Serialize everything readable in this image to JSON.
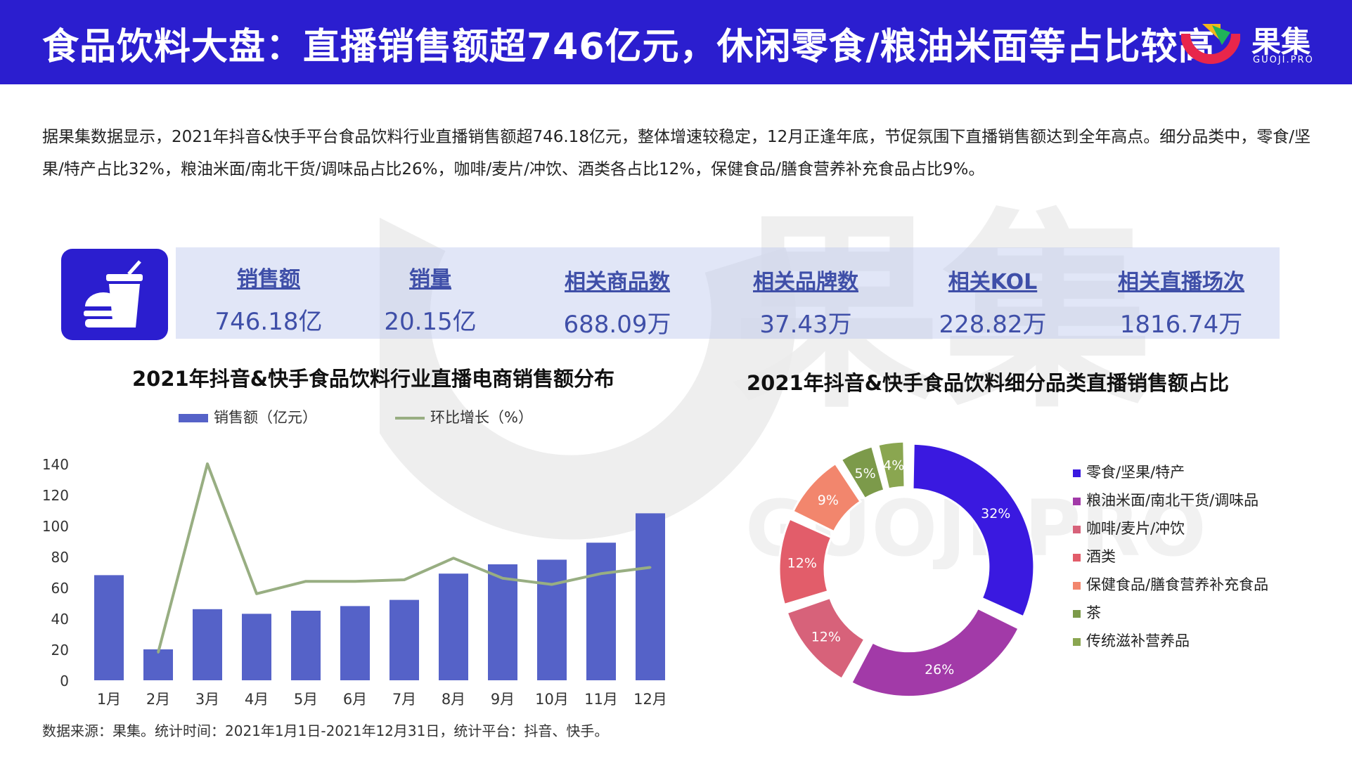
{
  "header": {
    "title": "食品饮料大盘：直播销售额超746亿元，休闲零食/粮油米面等占比较高",
    "logo_name": "果集",
    "logo_sub": "GUOJI.PRO",
    "bg_color": "#2b1ecf"
  },
  "summary": "据果集数据显示，2021年抖音&快手平台食品饮料行业直播销售额超746.18亿元，整体增速较稳定，12月正逢年底，节促氛围下直播销售额达到全年高点。细分品类中，零食/坚果/特产占比32%，粮油米面/南北干货/调味品占比26%，咖啡/麦片/冲饮、酒类各占比12%，保健食品/膳食营养补充食品占比9%。",
  "kpi_icon": "burger-drink-icon",
  "kpis": [
    {
      "label": "销售额",
      "value": "746.18亿"
    },
    {
      "label": "销量",
      "value": "20.15亿"
    },
    {
      "label": "相关商品数",
      "value": "688.09万"
    },
    {
      "label": "相关品牌数",
      "value": "37.43万"
    },
    {
      "label": "相关KOL",
      "value": "228.82万"
    },
    {
      "label": "相关直播场次",
      "value": "1816.74万"
    }
  ],
  "watermark": {
    "text": "果集",
    "sub": "GUOJI.PRO"
  },
  "chart_data": [
    {
      "type": "bar",
      "title": "2021年抖音&快手食品饮料行业直播电商销售额分布",
      "categories": [
        "1月",
        "2月",
        "3月",
        "4月",
        "5月",
        "6月",
        "7月",
        "8月",
        "9月",
        "10月",
        "11月",
        "12月"
      ],
      "series": [
        {
          "name": "销售额（亿元）",
          "type": "bar",
          "color": "#5562c8",
          "values": [
            68,
            20,
            46,
            43,
            45,
            48,
            52,
            69,
            75,
            78,
            89,
            108
          ]
        },
        {
          "name": "环比增长（%）",
          "type": "line",
          "color": "#98ae82",
          "values": [
            null,
            18,
            140,
            56,
            64,
            64,
            65,
            79,
            66,
            62,
            69,
            73
          ]
        }
      ],
      "ylim": [
        0,
        140
      ],
      "yticks": [
        "0",
        "20",
        "40",
        "60",
        "80",
        "100",
        "120",
        "140"
      ],
      "legend_position": "top",
      "grid": false
    },
    {
      "type": "pie",
      "title": "2021年抖音&快手食品饮料细分品类直播销售额占比",
      "donut": true,
      "legend_position": "right",
      "slices": [
        {
          "name": "零食/坚果/特产",
          "value": 32,
          "label": "32%",
          "color": "#3a19e0"
        },
        {
          "name": "粮油米面/南北干货/调味品",
          "value": 26,
          "label": "26%",
          "color": "#a23aa8"
        },
        {
          "name": "咖啡/麦片/冲饮",
          "value": 12,
          "label": "12%",
          "color": "#d7627a"
        },
        {
          "name": "酒类",
          "value": 12,
          "label": "12%",
          "color": "#e25d6a"
        },
        {
          "name": "保健食品/膳食营养补充食品",
          "value": 9,
          "label": "9%",
          "color": "#f2866d"
        },
        {
          "name": "茶",
          "value": 5,
          "label": "5%",
          "color": "#7c9a4a"
        },
        {
          "name": "传统滋补营养品",
          "value": 4,
          "label": "4%",
          "color": "#8aa650"
        }
      ]
    }
  ],
  "source": "数据来源：果集。统计时间：2021年1月1日-2021年12月31日，统计平台：抖音、快手。"
}
